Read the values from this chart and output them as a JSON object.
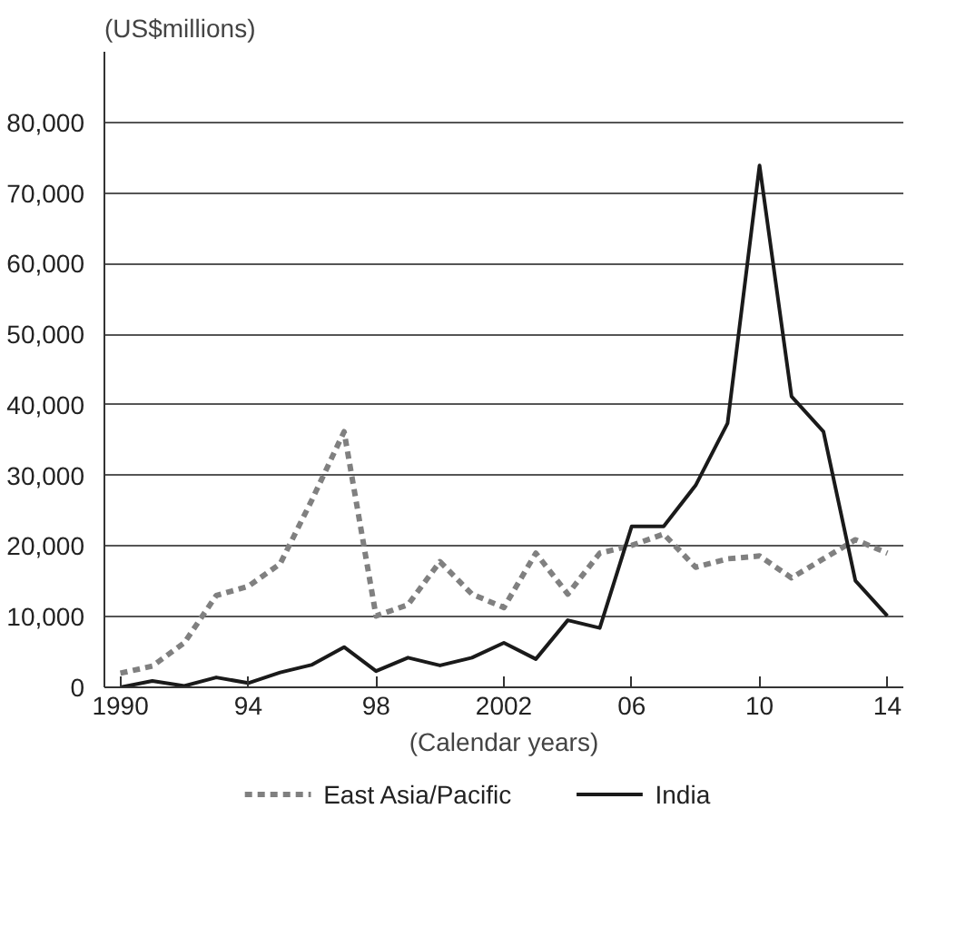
{
  "chart_data": {
    "type": "line",
    "ylabel": "(US$millions)",
    "xlabel": "(Calendar years)",
    "x": [
      1990,
      1991,
      1992,
      1993,
      1994,
      1995,
      1996,
      1997,
      1998,
      1999,
      2000,
      2001,
      2002,
      2003,
      2004,
      2005,
      2006,
      2007,
      2008,
      2009,
      2010,
      2011,
      2012,
      2013,
      2014
    ],
    "series": [
      {
        "name": "East Asia/Pacific",
        "color": "#808080",
        "line_style": "dashed",
        "values": [
          2000,
          3000,
          6300,
          13000,
          14300,
          17500,
          26600,
          36200,
          10100,
          11700,
          17800,
          13200,
          11300,
          19000,
          13200,
          19000,
          20100,
          21700,
          17000,
          18200,
          18600,
          15500,
          18200,
          20900,
          19000
        ]
      },
      {
        "name": "India",
        "color": "#1a1a1a",
        "line_style": "solid",
        "values": [
          0,
          900,
          200,
          1400,
          600,
          2100,
          3200,
          5700,
          2300,
          4200,
          3100,
          4200,
          6300,
          4000,
          9500,
          8400,
          22800,
          22800,
          28600,
          37400,
          73900,
          41200,
          36200,
          15100,
          10100
        ]
      }
    ],
    "xlim": [
      1989.5,
      2014.5
    ],
    "xticks": [
      1990,
      {
        "value": 1994,
        "label": "94"
      },
      {
        "value": 1998,
        "label": "98"
      },
      2002,
      {
        "value": 2006,
        "label": "06"
      },
      {
        "value": 2010,
        "label": "10"
      },
      {
        "value": 2014,
        "label": "14"
      }
    ],
    "ylim": [
      0,
      90000
    ],
    "yticks": [
      0,
      {
        "value": 10000,
        "label": "10,000"
      },
      {
        "value": 20000,
        "label": "20,000"
      },
      {
        "value": 30000,
        "label": "30,000"
      },
      {
        "value": 40000,
        "label": "40,000"
      },
      {
        "value": 50000,
        "label": "50,000"
      },
      {
        "value": 60000,
        "label": "60,000"
      },
      {
        "value": 70000,
        "label": "70,000"
      },
      {
        "value": 80000,
        "label": "80,000"
      }
    ],
    "grid": "y",
    "legend": "bottom"
  }
}
